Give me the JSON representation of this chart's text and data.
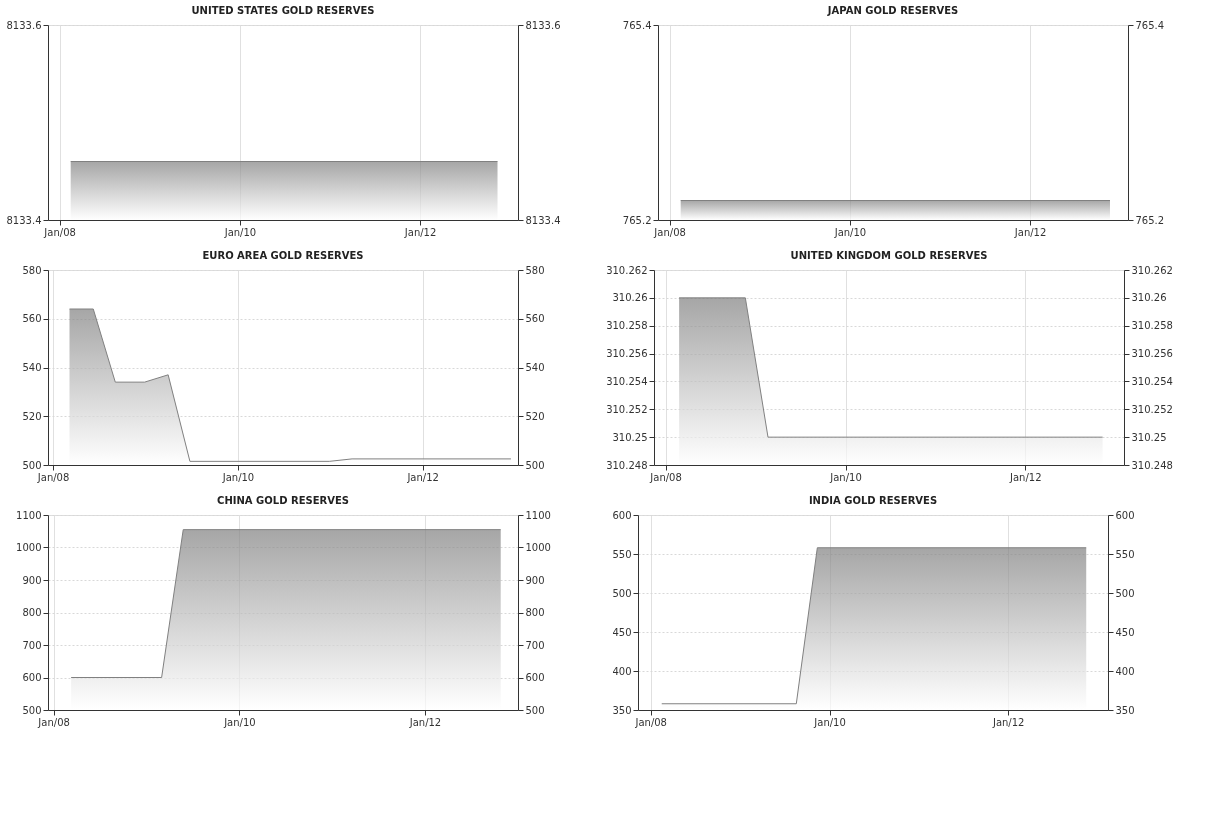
{
  "chart_data": [
    {
      "type": "area",
      "title": "UNITED STATES GOLD RESERVES",
      "x": [
        "2008-02-15",
        "2012-11-10"
      ],
      "series": [
        {
          "color": "#808080",
          "values": [
            8133.46,
            8133.46
          ]
        }
      ],
      "xlim": [
        "2007-11-15",
        "2013-02-01"
      ],
      "xticks": [
        {
          "value": "2008-01-01",
          "label": "Jan/08"
        },
        {
          "value": "2010-01-01",
          "label": "Jan/10"
        },
        {
          "value": "2012-01-01",
          "label": "Jan/12"
        }
      ],
      "ylim": [
        8133.4,
        8133.6
      ],
      "yticks": [
        8133.4,
        8133.6
      ],
      "y2lim": [
        8133.4,
        8133.6
      ],
      "y2ticks": [
        8133.4,
        8133.6
      ],
      "grid": true
    },
    {
      "type": "area",
      "title": "JAPAN GOLD RESERVES",
      "x": [
        "2008-02-15",
        "2012-11-20"
      ],
      "series": [
        {
          "color": "#808080",
          "values": [
            765.22,
            765.22
          ]
        }
      ],
      "xlim": [
        "2007-11-15",
        "2013-02-01"
      ],
      "xticks": [
        {
          "value": "2008-01-01",
          "label": "Jan/08"
        },
        {
          "value": "2010-01-01",
          "label": "Jan/10"
        },
        {
          "value": "2012-01-01",
          "label": "Jan/12"
        }
      ],
      "ylim": [
        765.2,
        765.4
      ],
      "yticks": [
        765.2,
        765.4
      ],
      "y2lim": [
        765.2,
        765.4
      ],
      "y2ticks": [
        765.2,
        765.4
      ],
      "grid": true
    },
    {
      "type": "area",
      "title": "EURO AREA GOLD RESERVES",
      "x": [
        "2008-03-06",
        "2008-06-08",
        "2008-09-03",
        "2008-12-28",
        "2009-03-31",
        "2009-06-25",
        "2010-12-28",
        "2011-03-28",
        "2012-12-15"
      ],
      "series": [
        {
          "color": "#808080",
          "values": [
            564,
            564,
            534,
            534,
            537,
            501.5,
            501.5,
            502.5,
            502.5
          ]
        }
      ],
      "xlim": [
        "2007-12-12",
        "2013-01-12"
      ],
      "xticks": [
        {
          "value": "2008-01-01",
          "label": "Jan/08"
        },
        {
          "value": "2010-01-01",
          "label": "Jan/10"
        },
        {
          "value": "2012-01-01",
          "label": "Jan/12"
        }
      ],
      "ylim": [
        500,
        580
      ],
      "yticks": [
        500,
        520,
        540,
        560,
        580
      ],
      "y2lim": [
        500,
        580
      ],
      "y2ticks": [
        500,
        520,
        540,
        560,
        580
      ],
      "grid": true
    },
    {
      "type": "area",
      "title": "UNITED KINGDOM GOLD RESERVES",
      "x": [
        "2008-02-25",
        "2008-11-20",
        "2009-02-20",
        "2012-11-10"
      ],
      "series": [
        {
          "color": "#808080",
          "values": [
            310.26,
            310.26,
            310.25,
            310.25
          ]
        }
      ],
      "xlim": [
        "2007-11-15",
        "2013-02-05"
      ],
      "xticks": [
        {
          "value": "2008-01-01",
          "label": "Jan/08"
        },
        {
          "value": "2010-01-01",
          "label": "Jan/10"
        },
        {
          "value": "2012-01-01",
          "label": "Jan/12"
        }
      ],
      "ylim": [
        310.248,
        310.262
      ],
      "yticks": [
        310.248,
        310.25,
        310.252,
        310.254,
        310.256,
        310.258,
        310.26,
        310.262
      ],
      "y2lim": [
        310.248,
        310.262
      ],
      "y2ticks": [
        310.248,
        310.25,
        310.252,
        310.254,
        310.256,
        310.258,
        310.26,
        310.262
      ],
      "grid": true
    },
    {
      "type": "area",
      "title": "CHINA GOLD RESERVES",
      "x": [
        "2008-03-10",
        "2009-03-01",
        "2009-05-25",
        "2012-10-25"
      ],
      "series": [
        {
          "color": "#808080",
          "values": [
            600,
            600,
            1055,
            1055
          ]
        }
      ],
      "xlim": [
        "2007-12-10",
        "2013-01-01"
      ],
      "xticks": [
        {
          "value": "2008-01-01",
          "label": "Jan/08"
        },
        {
          "value": "2010-01-01",
          "label": "Jan/10"
        },
        {
          "value": "2012-01-01",
          "label": "Jan/12"
        }
      ],
      "ylim": [
        500,
        1100
      ],
      "yticks": [
        500,
        600,
        700,
        800,
        900,
        1000,
        1100
      ],
      "y2lim": [
        500,
        1100
      ],
      "y2ticks": [
        500,
        600,
        700,
        800,
        900,
        1000,
        1100
      ],
      "grid": true
    },
    {
      "type": "area",
      "title": "INDIA GOLD RESERVES",
      "x": [
        "2008-02-15",
        "2009-08-18",
        "2009-11-12",
        "2012-11-15"
      ],
      "series": [
        {
          "color": "#808080",
          "values": [
            358,
            358,
            558,
            558
          ]
        }
      ],
      "xlim": [
        "2007-11-10",
        "2013-02-12"
      ],
      "xticks": [
        {
          "value": "2008-01-01",
          "label": "Jan/08"
        },
        {
          "value": "2010-01-01",
          "label": "Jan/10"
        },
        {
          "value": "2012-01-01",
          "label": "Jan/12"
        }
      ],
      "ylim": [
        350,
        600
      ],
      "yticks": [
        350,
        400,
        450,
        500,
        550,
        600
      ],
      "y2lim": [
        350,
        600
      ],
      "y2ticks": [
        350,
        400,
        450,
        500,
        550,
        600
      ],
      "grid": true
    }
  ]
}
